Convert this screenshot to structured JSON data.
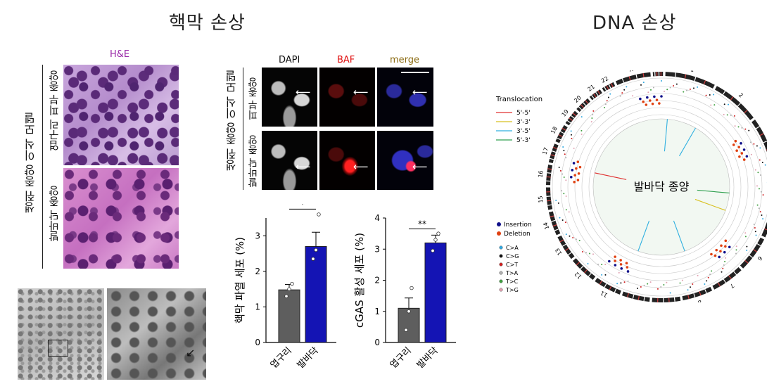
{
  "titles": {
    "left": "핵막 손상",
    "right": "DNA 손상"
  },
  "he": {
    "stain_label": "H&E",
    "group_label": "생쥐 종양 이식 모델",
    "row1": "엽구리 피부 종양",
    "row2": "발바닥 종양"
  },
  "fluor": {
    "col1": "DAPI",
    "col2": "BAF",
    "col3": "merge",
    "group_label": "생쥐 종양 이식 모델",
    "row1": "피부 종양",
    "row2": "발바닥 종양",
    "colors": {
      "dapi": "#000000",
      "baf": "#e01010",
      "merge": "#8a6a10"
    }
  },
  "chart_data": [
    {
      "type": "bar",
      "categories": [
        "엽구리",
        "발바닥"
      ],
      "values": [
        1.48,
        2.7
      ],
      "errors": [
        0.15,
        0.4
      ],
      "points": [
        [
          1.3,
          1.5,
          1.65
        ],
        [
          2.35,
          2.6,
          3.6
        ]
      ],
      "ylabel": "핵막 파열 세포 (%)",
      "ylim": [
        0,
        3.5
      ],
      "yticks": [
        "0",
        "1",
        "2",
        "3"
      ],
      "significance": "*",
      "colors": [
        "#5e5e5e",
        "#1414b4"
      ]
    },
    {
      "type": "bar",
      "categories": [
        "엽구리",
        "발바닥"
      ],
      "values": [
        1.1,
        3.2
      ],
      "errors": [
        0.33,
        0.25
      ],
      "points": [
        [
          0.4,
          1.0,
          1.75
        ],
        [
          2.95,
          3.3,
          3.5
        ]
      ],
      "ylabel": "cGAS 활성 세포 (%)",
      "ylim": [
        0,
        4
      ],
      "yticks": [
        "0",
        "1",
        "2",
        "3",
        "4"
      ],
      "significance": "**",
      "colors": [
        "#5e5e5e",
        "#1414b4"
      ]
    }
  ],
  "circos": {
    "center_label": "발바닥 종양",
    "translocation_title": "Translocation",
    "translocations": [
      {
        "label": "5'-5'",
        "color": "#e03030"
      },
      {
        "label": "3'-3'",
        "color": "#d8c020"
      },
      {
        "label": "3'-5'",
        "color": "#30b0e0"
      },
      {
        "label": "5'-3'",
        "color": "#30a050"
      }
    ],
    "indels": [
      {
        "label": "Insertion",
        "color": "#10108a"
      },
      {
        "label": "Deletion",
        "color": "#e04010"
      }
    ],
    "snvs": [
      {
        "label": "C>A",
        "color": "#30a8e0"
      },
      {
        "label": "C>G",
        "color": "#111111"
      },
      {
        "label": "C>T",
        "color": "#d02020"
      },
      {
        "label": "T>A",
        "color": "#b0b0b0"
      },
      {
        "label": "T>C",
        "color": "#40a040"
      },
      {
        "label": "T>G",
        "color": "#e0a0b0"
      }
    ],
    "chromosomes": [
      "1",
      "2",
      "3",
      "4",
      "5",
      "6",
      "7",
      "8",
      "9",
      "10",
      "11",
      "12",
      "13",
      "14",
      "15",
      "16",
      "17",
      "18",
      "19",
      "20",
      "21",
      "22",
      "X",
      "Y"
    ]
  }
}
